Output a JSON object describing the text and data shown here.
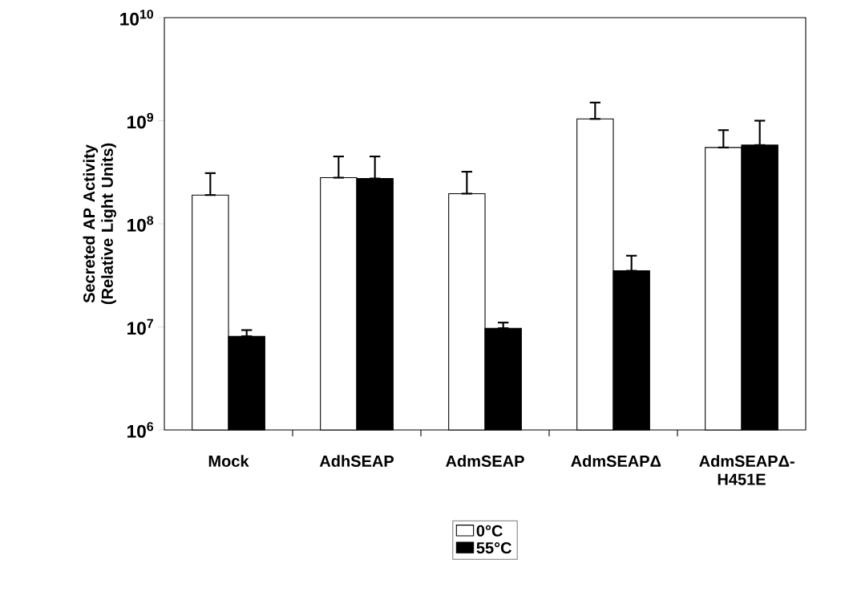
{
  "chart_data": {
    "type": "bar",
    "ylabel": "Secreted AP Activity (Relative Light Units)",
    "categories": [
      "Mock",
      "AdhSEAP",
      "AdmSEAP",
      "AdmSEAPΔ",
      "AdmSEAPΔ-H451E"
    ],
    "series": [
      {
        "name": "0°C",
        "color": "#ffffff",
        "values": [
          190000000.0,
          280000000.0,
          196000000.0,
          1040000000.0,
          550000000.0
        ],
        "errors": [
          [
            190000000.0,
            310000000.0
          ],
          [
            280000000.0,
            450000000.0
          ],
          [
            196000000.0,
            320000000.0
          ],
          [
            1040000000.0,
            1500000000.0
          ],
          [
            550000000.0,
            810000000.0
          ]
        ]
      },
      {
        "name": "55°C",
        "color": "#000000",
        "values": [
          8100000.0,
          275000000.0,
          9700000.0,
          35000000.0,
          580000000.0
        ],
        "errors": [
          [
            8100000.0,
            9300000.0
          ],
          [
            275000000.0,
            450000000.0
          ],
          [
            9700000.0,
            11000000.0
          ],
          [
            35000000.0,
            49000000.0
          ],
          [
            580000000.0,
            1000000000.0
          ]
        ]
      }
    ],
    "log": "y",
    "ylim": [
      1000000.0,
      10000000000.0
    ],
    "yticks": [
      {
        "value": 1000000.0,
        "label": "10$^{6}$"
      },
      {
        "value": 10000000.0,
        "label": "10$^{7}$"
      },
      {
        "value": 100000000.0,
        "label": "10$^{8}$"
      },
      {
        "value": 1000000000.0,
        "label": "10$^{9}$"
      },
      {
        "value": 10000000000.0,
        "label": "10$^{10}$"
      }
    ],
    "grid": false,
    "legend": "bottom"
  }
}
